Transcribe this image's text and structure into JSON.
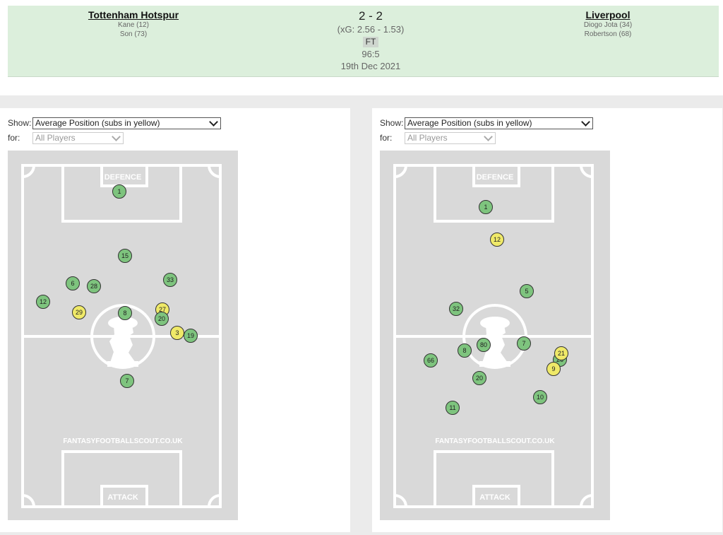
{
  "match": {
    "home": {
      "name": "Tottenham Hotspur",
      "scorers": [
        "Kane (12)",
        "Son (73)"
      ]
    },
    "away": {
      "name": "Liverpool",
      "scorers": [
        "Diogo Jota (34)",
        "Robertson (68)"
      ]
    },
    "score": "2 - 2",
    "xg": "(xG:  2.56 - 1.53)",
    "status": "FT",
    "minute": "96:5",
    "date": "19th Dec 2021"
  },
  "colors": {
    "band": "#dcefdc",
    "starter": "#7ec47e",
    "sub": "#efe968",
    "pitch": "#d9d9d9"
  },
  "panels": [
    {
      "show_label": "Show:",
      "show_value": "Average Position (subs in yellow)",
      "for_label": "for:",
      "for_value": "All Players",
      "pitch": {
        "top_label": "DEFENCE",
        "bottom_label": "ATTACK",
        "watermark": "FANTASYFOOTBALLSCOUT.CO.UK"
      },
      "players": [
        {
          "n": "1",
          "sub": false
        },
        {
          "n": "15",
          "sub": false
        },
        {
          "n": "6",
          "sub": false
        },
        {
          "n": "28",
          "sub": false
        },
        {
          "n": "33",
          "sub": false
        },
        {
          "n": "12",
          "sub": false
        },
        {
          "n": "29",
          "sub": true
        },
        {
          "n": "8",
          "sub": false
        },
        {
          "n": "27",
          "sub": true
        },
        {
          "n": "20",
          "sub": false
        },
        {
          "n": "3",
          "sub": true
        },
        {
          "n": "19",
          "sub": false
        },
        {
          "n": "7",
          "sub": false
        }
      ]
    },
    {
      "show_label": "Show:",
      "show_value": "Average Position (subs in yellow)",
      "for_label": "for:",
      "for_value": "All Players",
      "pitch": {
        "top_label": "DEFENCE",
        "bottom_label": "ATTACK",
        "watermark": "FANTASYFOOTBALLSCOUT.CO.UK"
      },
      "players": [
        {
          "n": "1",
          "sub": false
        },
        {
          "n": "12",
          "sub": true
        },
        {
          "n": "5",
          "sub": false
        },
        {
          "n": "32",
          "sub": false
        },
        {
          "n": "7",
          "sub": false
        },
        {
          "n": "80",
          "sub": false
        },
        {
          "n": "8",
          "sub": false
        },
        {
          "n": "66",
          "sub": false
        },
        {
          "n": "26",
          "sub": false
        },
        {
          "n": "9",
          "sub": true
        },
        {
          "n": "21",
          "sub": true
        },
        {
          "n": "20",
          "sub": false
        },
        {
          "n": "10",
          "sub": false
        },
        {
          "n": "11",
          "sub": false
        }
      ]
    }
  ]
}
